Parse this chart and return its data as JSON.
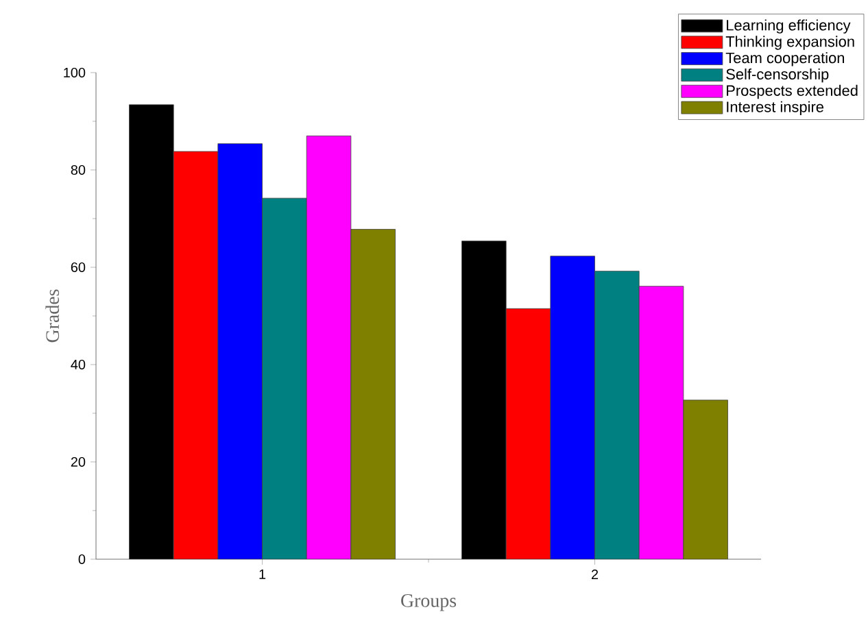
{
  "chart_data": {
    "type": "bar",
    "xlabel": "Groups",
    "ylabel": "Grades",
    "categories": [
      "1",
      "2"
    ],
    "series": [
      {
        "name": "Learning efficiency",
        "color": "#000000",
        "values": [
          93.4,
          65.4
        ]
      },
      {
        "name": "Thinking expansion",
        "color": "#ff0000",
        "values": [
          83.8,
          51.5
        ]
      },
      {
        "name": "Team cooperation",
        "color": "#0000ff",
        "values": [
          85.4,
          62.3
        ]
      },
      {
        "name": "Self-censorship",
        "color": "#008080",
        "values": [
          74.2,
          59.2
        ]
      },
      {
        "name": "Prospects extended",
        "color": "#ff00ff",
        "values": [
          87.0,
          56.1
        ]
      },
      {
        "name": "Interest inspire",
        "color": "#808000",
        "values": [
          67.8,
          32.7
        ]
      }
    ],
    "ylim": [
      0,
      100
    ],
    "yticks": [
      0,
      20,
      40,
      60,
      80,
      100
    ],
    "grid": false,
    "legend": "top right"
  }
}
